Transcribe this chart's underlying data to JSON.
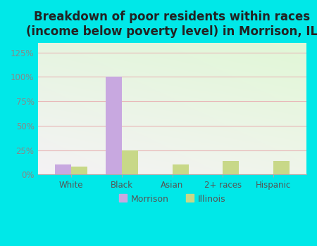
{
  "title": "Breakdown of poor residents within races\n(income below poverty level) in Morrison, IL",
  "categories": [
    "White",
    "Black",
    "Asian",
    "2+ races",
    "Hispanic"
  ],
  "morrison_values": [
    10,
    100,
    0,
    0,
    0
  ],
  "illinois_values": [
    8,
    25,
    10,
    14,
    14
  ],
  "morrison_color": "#c8a8e0",
  "illinois_color": "#c8d888",
  "ylim": [
    0,
    135
  ],
  "yticks": [
    0,
    25,
    50,
    75,
    100,
    125
  ],
  "ytick_labels": [
    "0%",
    "25%",
    "50%",
    "75%",
    "100%",
    "125%"
  ],
  "bg_outer": "#00e8e8",
  "grid_color": "#e8b8b8",
  "title_fontsize": 12,
  "bar_width": 0.32,
  "legend_labels": [
    "Morrison",
    "Illinois"
  ],
  "tick_label_color": "#888888",
  "axis_label_color": "#555555"
}
